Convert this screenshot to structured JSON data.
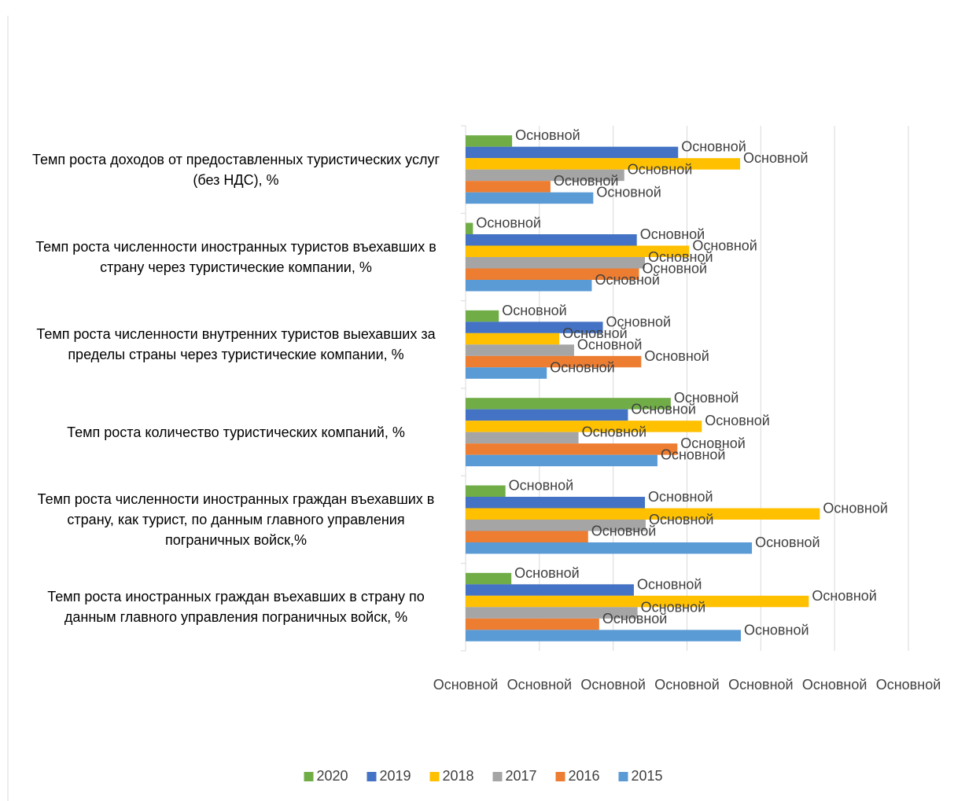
{
  "chart_data": {
    "type": "bar",
    "orientation": "horizontal",
    "categories": [
      "Темп роста доходов от предоставленных туристических услуг (без НДС), %",
      "Темп роста численности иностранных туристов въехавших в страну  через туристические компании, %",
      "Темп роста численности внутренних туристов выехавших за пределы страны через туристические компании, %",
      "Темп роста количество туристических компаний, %",
      "Темп роста численности иностранных граждан въехавших в страну, как турист, по данным главного управления               пограничных войск,%",
      "Темп роста иностранных граждан въехавших в страну по данным главного управления пограничных войск, %"
    ],
    "series": [
      {
        "name": "2020",
        "color": "#70ad47",
        "values": [
          0.63,
          0.1,
          0.45,
          2.78,
          0.54,
          0.62
        ],
        "value_labels": [
          "Основной",
          "Основной",
          "Основной",
          "Основной",
          "Основной",
          "Основной"
        ]
      },
      {
        "name": "2019",
        "color": "#4472c4",
        "values": [
          2.88,
          2.32,
          1.86,
          2.2,
          2.43,
          2.28
        ],
        "value_labels": [
          "Основной",
          "Основной",
          "Основной",
          "Основной",
          "Основной",
          "Основной"
        ]
      },
      {
        "name": "2018",
        "color": "#ffc000",
        "values": [
          3.72,
          3.03,
          1.27,
          3.2,
          4.8,
          4.65
        ],
        "value_labels": [
          "Основной",
          "Основной",
          "Основной",
          "Основной",
          "Основной",
          "Основной"
        ]
      },
      {
        "name": "2017",
        "color": "#a5a5a5",
        "values": [
          2.15,
          2.43,
          1.47,
          1.53,
          2.44,
          2.33
        ],
        "value_labels": [
          "Основной",
          "Основной",
          "Основной",
          "Основной",
          "Основной",
          "Основной"
        ]
      },
      {
        "name": "2016",
        "color": "#ed7d31",
        "values": [
          1.15,
          2.35,
          2.38,
          2.87,
          1.66,
          1.81
        ],
        "value_labels": [
          "Основной",
          "Основной",
          "Основной",
          "Основной",
          "Основной",
          "Основной"
        ]
      },
      {
        "name": "2015",
        "color": "#5b9bd5",
        "values": [
          1.73,
          1.71,
          1.1,
          2.6,
          3.88,
          3.73
        ],
        "value_labels": [
          "Основной",
          "Основной",
          "Основной",
          "Основной",
          "Основной",
          "Основной"
        ]
      }
    ],
    "xlim": [
      0,
      6
    ],
    "xticks": [
      {
        "value": 0,
        "label": "Основной"
      },
      {
        "value": 1,
        "label": "Основной"
      },
      {
        "value": 2,
        "label": "Основной"
      },
      {
        "value": 3,
        "label": "Основной"
      },
      {
        "value": 4,
        "label": "Основной"
      },
      {
        "value": 5,
        "label": "Основной"
      },
      {
        "value": 6,
        "label": "Основной"
      }
    ],
    "grid": true,
    "legend": "bottom"
  }
}
